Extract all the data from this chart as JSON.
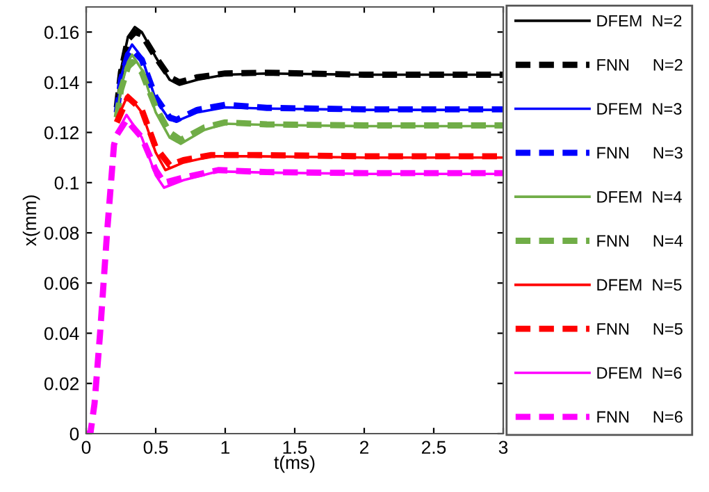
{
  "chart_data": {
    "type": "line",
    "xlabel": "t(ms)",
    "ylabel": "x(mm)",
    "xlim": [
      0,
      3
    ],
    "xticks": [
      0,
      0.5,
      1,
      1.5,
      2,
      2.5,
      3
    ],
    "ylim": [
      0,
      0.17
    ],
    "yticks": [
      0,
      0.02,
      0.04,
      0.06,
      0.08,
      0.1,
      0.12,
      0.14,
      0.16
    ],
    "grid": false,
    "legend": "right",
    "marker": "none",
    "series": [
      {
        "name": "DFEM  N=2",
        "color": "#000000",
        "line_style": "solid",
        "x": [
          0.22,
          0.25,
          0.3,
          0.35,
          0.4,
          0.5,
          0.6,
          0.67,
          0.8,
          1.0,
          1.3,
          2,
          3
        ],
        "values": [
          0.13,
          0.145,
          0.158,
          0.162,
          0.16,
          0.15,
          0.141,
          0.139,
          0.141,
          0.143,
          0.1435,
          0.143,
          0.143
        ]
      },
      {
        "name": "FNN     N=2",
        "color": "#000000",
        "line_style": "dashed",
        "x": [
          0.22,
          0.25,
          0.3,
          0.35,
          0.4,
          0.5,
          0.6,
          0.67,
          0.8,
          1.0,
          1.3,
          2,
          3
        ],
        "values": [
          0.13,
          0.144,
          0.157,
          0.16,
          0.159,
          0.15,
          0.142,
          0.14,
          0.142,
          0.1435,
          0.1438,
          0.143,
          0.143
        ]
      },
      {
        "name": "DFEM  N=3",
        "color": "#0000ff",
        "line_style": "solid",
        "x": [
          0.22,
          0.25,
          0.3,
          0.33,
          0.4,
          0.5,
          0.6,
          0.65,
          0.8,
          1.0,
          1.3,
          2,
          3
        ],
        "values": [
          0.128,
          0.142,
          0.152,
          0.155,
          0.15,
          0.133,
          0.125,
          0.1245,
          0.128,
          0.13,
          0.1295,
          0.129,
          0.129
        ]
      },
      {
        "name": "FNN     N=3",
        "color": "#0000ff",
        "line_style": "dashed",
        "x": [
          0.22,
          0.25,
          0.3,
          0.33,
          0.4,
          0.5,
          0.6,
          0.65,
          0.8,
          1.0,
          1.3,
          2,
          3
        ],
        "values": [
          0.128,
          0.141,
          0.151,
          0.153,
          0.149,
          0.134,
          0.126,
          0.125,
          0.129,
          0.131,
          0.1298,
          0.1292,
          0.1292
        ]
      },
      {
        "name": "DFEM  N=4",
        "color": "#70ad47",
        "line_style": "solid",
        "x": [
          0.22,
          0.25,
          0.3,
          0.33,
          0.4,
          0.5,
          0.6,
          0.68,
          0.85,
          1.0,
          1.3,
          2,
          3
        ],
        "values": [
          0.126,
          0.138,
          0.148,
          0.151,
          0.145,
          0.128,
          0.118,
          0.1155,
          0.121,
          0.1235,
          0.123,
          0.1225,
          0.1225
        ]
      },
      {
        "name": "FNN     N=4",
        "color": "#70ad47",
        "line_style": "dashed",
        "x": [
          0.22,
          0.25,
          0.3,
          0.33,
          0.4,
          0.5,
          0.6,
          0.68,
          0.85,
          1.0,
          1.3,
          2,
          3
        ],
        "values": [
          0.126,
          0.137,
          0.146,
          0.148,
          0.144,
          0.13,
          0.12,
          0.117,
          0.122,
          0.124,
          0.1232,
          0.1228,
          0.1228
        ]
      },
      {
        "name": "DFEM  N=5",
        "color": "#ff0000",
        "line_style": "solid",
        "x": [
          0.22,
          0.3,
          0.4,
          0.5,
          0.57,
          0.7,
          0.9,
          1.2,
          2,
          3
        ],
        "values": [
          0.125,
          0.135,
          0.128,
          0.112,
          0.105,
          0.108,
          0.1105,
          0.1105,
          0.11,
          0.11
        ]
      },
      {
        "name": "FNN     N=5",
        "color": "#ff0000",
        "line_style": "dashed",
        "x": [
          0.22,
          0.3,
          0.4,
          0.5,
          0.6,
          0.7,
          0.9,
          1.2,
          2,
          3
        ],
        "values": [
          0.124,
          0.134,
          0.129,
          0.114,
          0.107,
          0.109,
          0.111,
          0.111,
          0.1105,
          0.1105
        ]
      },
      {
        "name": "DFEM  N=6",
        "color": "#ff00ff",
        "line_style": "solid",
        "x": [
          0.22,
          0.29,
          0.4,
          0.5,
          0.56,
          0.7,
          0.95,
          1.3,
          2,
          3
        ],
        "values": [
          0.12,
          0.127,
          0.118,
          0.103,
          0.098,
          0.101,
          0.1045,
          0.104,
          0.1035,
          0.1035
        ]
      },
      {
        "name": "FNN     N=6",
        "color": "#ff00ff",
        "line_style": "dashed",
        "x": [
          0,
          0.03,
          0.06,
          0.1,
          0.15,
          0.2,
          0.22,
          0.29,
          0.4,
          0.5,
          0.56,
          0.7,
          0.95,
          1.3,
          2,
          3
        ],
        "values": [
          0,
          0,
          0.012,
          0.04,
          0.08,
          0.115,
          0.119,
          0.125,
          0.118,
          0.105,
          0.1,
          0.102,
          0.105,
          0.1042,
          0.1038,
          0.1038
        ]
      }
    ]
  }
}
